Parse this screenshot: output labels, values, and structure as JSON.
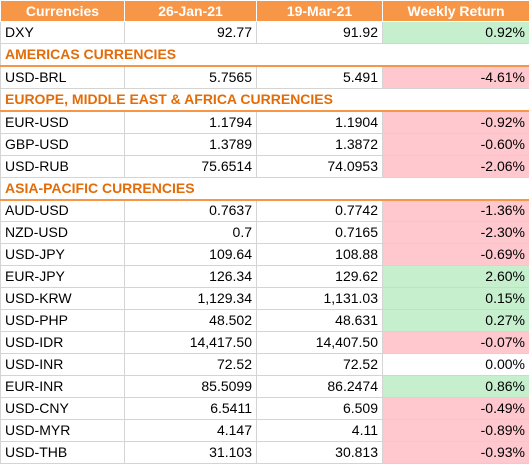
{
  "header": {
    "col_label": "Currencies",
    "col_date1": "26-Jan-21",
    "col_date2": "19-Mar-21",
    "col_return": "Weekly Return"
  },
  "rows": [
    {
      "type": "data",
      "label": "DXY",
      "v1": "92.77",
      "v2": "91.92",
      "ret": "0.92%",
      "sign": "pos"
    },
    {
      "type": "section",
      "label": "AMERICAS CURRENCIES"
    },
    {
      "type": "data",
      "label": "USD-BRL",
      "v1": "5.7565",
      "v2": "5.491",
      "ret": "-4.61%",
      "sign": "neg"
    },
    {
      "type": "section",
      "label": "EUROPE, MIDDLE EAST & AFRICA CURRENCIES"
    },
    {
      "type": "data",
      "label": "EUR-USD",
      "v1": "1.1794",
      "v2": "1.1904",
      "ret": "-0.92%",
      "sign": "neg"
    },
    {
      "type": "data",
      "label": "GBP-USD",
      "v1": "1.3789",
      "v2": "1.3872",
      "ret": "-0.60%",
      "sign": "neg"
    },
    {
      "type": "data",
      "label": "USD-RUB",
      "v1": "75.6514",
      "v2": "74.0953",
      "ret": "-2.06%",
      "sign": "neg"
    },
    {
      "type": "section",
      "label": "ASIA-PACIFIC CURRENCIES"
    },
    {
      "type": "data",
      "label": "AUD-USD",
      "v1": "0.7637",
      "v2": "0.7742",
      "ret": "-1.36%",
      "sign": "neg"
    },
    {
      "type": "data",
      "label": "NZD-USD",
      "v1": "0.7",
      "v2": "0.7165",
      "ret": "-2.30%",
      "sign": "neg"
    },
    {
      "type": "data",
      "label": "USD-JPY",
      "v1": "109.64",
      "v2": "108.88",
      "ret": "-0.69%",
      "sign": "neg"
    },
    {
      "type": "data",
      "label": "EUR-JPY",
      "v1": "126.34",
      "v2": "129.62",
      "ret": "2.60%",
      "sign": "pos"
    },
    {
      "type": "data",
      "label": "USD-KRW",
      "v1": "1,129.34",
      "v2": "1,131.03",
      "ret": "0.15%",
      "sign": "pos"
    },
    {
      "type": "data",
      "label": "USD-PHP",
      "v1": "48.502",
      "v2": "48.631",
      "ret": "0.27%",
      "sign": "pos"
    },
    {
      "type": "data",
      "label": "USD-IDR",
      "v1": "14,417.50",
      "v2": "14,407.50",
      "ret": "-0.07%",
      "sign": "neg"
    },
    {
      "type": "data",
      "label": "USD-INR",
      "v1": "72.52",
      "v2": "72.52",
      "ret": "0.00%",
      "sign": "zero"
    },
    {
      "type": "data",
      "label": "EUR-INR",
      "v1": "85.5099",
      "v2": "86.2474",
      "ret": "0.86%",
      "sign": "pos"
    },
    {
      "type": "data",
      "label": "USD-CNY",
      "v1": "6.5411",
      "v2": "6.509",
      "ret": "-0.49%",
      "sign": "neg"
    },
    {
      "type": "data",
      "label": "USD-MYR",
      "v1": "4.147",
      "v2": "4.11",
      "ret": "-0.89%",
      "sign": "neg"
    },
    {
      "type": "data",
      "label": "USD-THB",
      "v1": "31.103",
      "v2": "30.813",
      "ret": "-0.93%",
      "sign": "neg"
    }
  ]
}
